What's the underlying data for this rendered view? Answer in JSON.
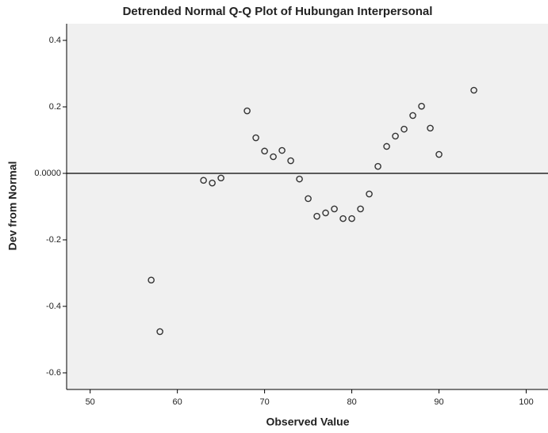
{
  "chart_data": {
    "type": "scatter",
    "title": "Detrended Normal Q-Q Plot of Hubungan Interpersonal",
    "x_label": "Observed Value",
    "y_label": "Dev from Normal",
    "x": [
      57,
      58,
      63,
      64,
      65,
      68,
      69,
      70,
      71,
      72,
      73,
      74,
      75,
      76,
      77,
      78,
      79,
      80,
      81,
      82,
      83,
      84,
      85,
      86,
      87,
      88,
      89,
      90,
      94
    ],
    "values": [
      -0.321,
      -0.476,
      -0.021,
      -0.029,
      -0.014,
      0.188,
      0.107,
      0.067,
      0.05,
      0.069,
      0.038,
      -0.017,
      -0.076,
      -0.129,
      -0.119,
      -0.107,
      -0.136,
      -0.136,
      -0.107,
      -0.062,
      0.021,
      0.081,
      0.112,
      0.133,
      0.174,
      0.202,
      0.136,
      0.057,
      0.25
    ],
    "color": "#333333",
    "xlim": [
      47.3,
      102.5
    ],
    "xticks": [
      50,
      60,
      70,
      80,
      90,
      100
    ],
    "ylim": [
      -0.65,
      0.45
    ],
    "yticks": [
      -0.6,
      -0.4,
      -0.2,
      {
        "value": 0,
        "label": "0.0000"
      },
      0.2,
      0.4
    ],
    "reference_line": 0
  }
}
